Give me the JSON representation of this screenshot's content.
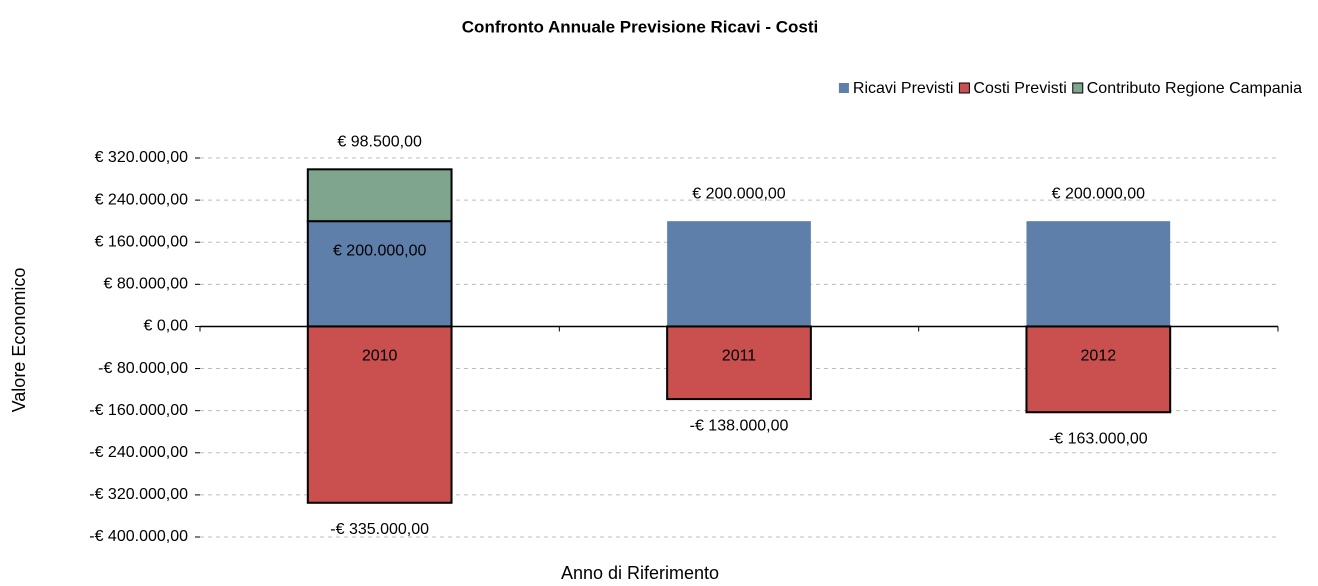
{
  "chart_data": {
    "type": "bar",
    "stacked": true,
    "title": "Confronto Annuale Previsione Ricavi - Costi",
    "xlabel": "Anno di Riferimento",
    "ylabel": "Valore Economico",
    "categories": [
      "2010",
      "2011",
      "2012"
    ],
    "series": [
      {
        "name": "Ricavi Previsti",
        "color": "#5f7fab",
        "values": [
          200000,
          200000,
          200000
        ],
        "value_labels": [
          "€ 200.000,00",
          "€ 200.000,00",
          "€ 200.000,00"
        ]
      },
      {
        "name": "Costi Previsti",
        "color": "#c9504f",
        "values": [
          -335000,
          -138000,
          -163000
        ],
        "value_labels": [
          "-€ 335.000,00",
          "-€ 138.000,00",
          "-€ 163.000,00"
        ]
      },
      {
        "name": "Contributo  Regione Campania",
        "color": "#7fa58f",
        "values": [
          98500,
          null,
          null
        ],
        "value_labels": [
          "€ 98.500,00",
          null,
          null
        ]
      }
    ],
    "ylim": [
      -400000,
      320000
    ],
    "yticks": [
      {
        "value": 320000,
        "label": "€ 320.000,00"
      },
      {
        "value": 240000,
        "label": "€ 240.000,00"
      },
      {
        "value": 160000,
        "label": "€ 160.000,00"
      },
      {
        "value": 80000,
        "label": "€ 80.000,00"
      },
      {
        "value": 0,
        "label": "€ 0,00"
      },
      {
        "value": -80000,
        "label": "-€ 80.000,00"
      },
      {
        "value": -160000,
        "label": "-€ 160.000,00"
      },
      {
        "value": -240000,
        "label": "-€ 240.000,00"
      },
      {
        "value": -320000,
        "label": "-€ 320.000,00"
      },
      {
        "value": -400000,
        "label": "-€ 400.000,00"
      }
    ],
    "grid": true,
    "legend": "top-right"
  }
}
